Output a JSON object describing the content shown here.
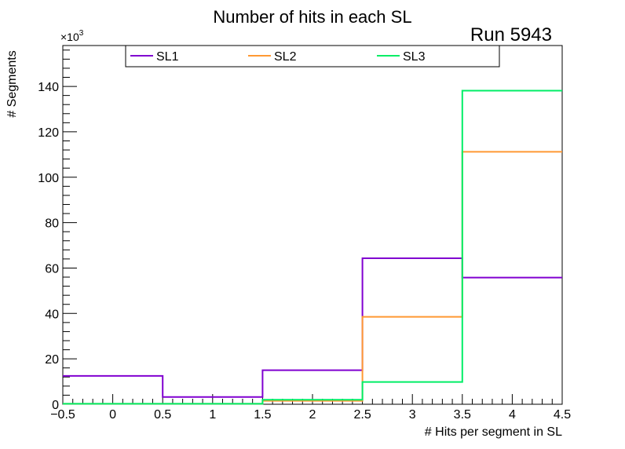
{
  "chart_data": {
    "type": "histogram-step",
    "title": "Number of hits in each SL",
    "run_label": "Run 5943",
    "xlabel": "# Hits per segment in SL",
    "ylabel": "# Segments",
    "y_multiplier_label": "×10",
    "y_multiplier_exp": "3",
    "xlim": [
      -0.5,
      4.5
    ],
    "ylim": [
      0,
      158
    ],
    "x_bin_edges": [
      -0.5,
      0.5,
      1.5,
      2.5,
      3.5,
      4.5
    ],
    "x_ticks": [
      -0.5,
      0,
      0.5,
      1,
      1.5,
      2,
      2.5,
      3,
      3.5,
      4,
      4.5
    ],
    "x_tick_labels": [
      "−0.5",
      "0",
      "0.5",
      "1",
      "1.5",
      "2",
      "2.5",
      "3",
      "3.5",
      "4",
      "4.5"
    ],
    "y_ticks": [
      0,
      20,
      40,
      60,
      80,
      100,
      120,
      140
    ],
    "y_tick_labels": [
      "0",
      "20",
      "40",
      "60",
      "80",
      "100",
      "120",
      "140"
    ],
    "series": [
      {
        "name": "SL1",
        "color": "#8000d0",
        "values": [
          12.5,
          3.2,
          15.0,
          64.3,
          55.8
        ]
      },
      {
        "name": "SL2",
        "color": "#ff9933",
        "values": [
          0.2,
          0.2,
          1.5,
          38.5,
          111.2
        ]
      },
      {
        "name": "SL3",
        "color": "#00ee66",
        "values": [
          0.2,
          0.2,
          2.0,
          9.8,
          138.1
        ]
      }
    ],
    "legend_position": "top"
  }
}
